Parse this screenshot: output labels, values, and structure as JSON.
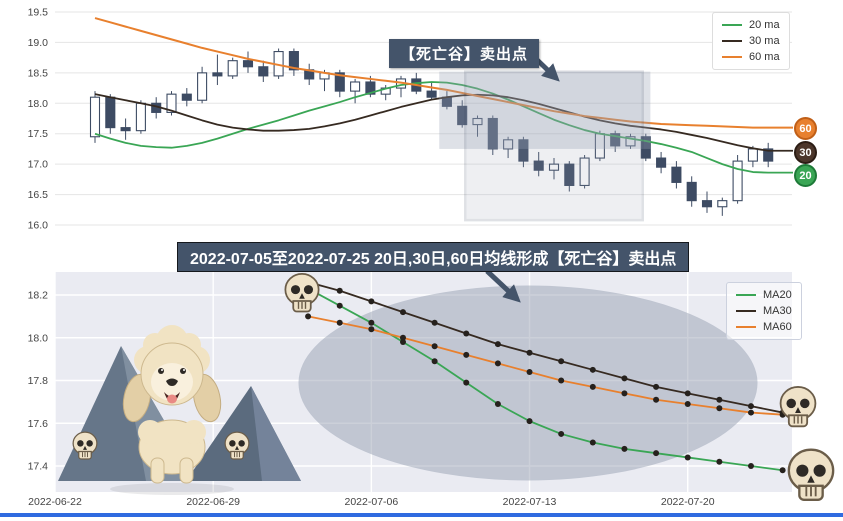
{
  "banner": {
    "text": "2022-07-05至2022-07-25 20日,30日,60日均线形成【死亡谷】卖出点"
  },
  "annotation": {
    "text": "【死亡谷】卖出点"
  },
  "badges": [
    {
      "label": "60",
      "color": "#e8802e",
      "ring": "#c05f17"
    },
    {
      "label": "30",
      "color": "#4c362b",
      "ring": "#2c1d15"
    },
    {
      "label": "20",
      "color": "#3aa655",
      "ring": "#1e7a38"
    }
  ],
  "colors": {
    "ma20": "#3aa655",
    "ma30": "#362a21",
    "ma60": "#e8802e",
    "candle": "#3d4b63",
    "highlight_fill": "#99a3b5",
    "highlight_box_border": "#3d4b63",
    "annotation_bg": "#44546a",
    "plot_bg_bottom": "#eaebf2",
    "ellipse_fill": "#9aa3b4",
    "bottom_strip": "#2f6be0"
  },
  "icons": {
    "skull": "skull-icon",
    "dog": "poodle-dog-illustration",
    "mountains": "mountain-illustration",
    "arrow": "annotation-arrow"
  },
  "chart_data": [
    {
      "type": "candlestick",
      "legend": [
        "20 ma",
        "30 ma",
        "60 ma"
      ],
      "legend_position": "upper right",
      "ylim": [
        16.0,
        19.5
      ],
      "yticks": [
        "19.5",
        "19.0",
        "18.5",
        "18.0",
        "17.5",
        "17.0",
        "16.5",
        "16.0"
      ],
      "grid": "horizontal",
      "candles_ohlc": [
        [
          17.45,
          18.2,
          17.35,
          18.1
        ],
        [
          18.1,
          18.15,
          17.5,
          17.6
        ],
        [
          17.6,
          17.75,
          17.4,
          17.55
        ],
        [
          17.55,
          18.05,
          17.5,
          18.0
        ],
        [
          18.0,
          18.1,
          17.75,
          17.85
        ],
        [
          17.85,
          18.2,
          17.8,
          18.15
        ],
        [
          18.15,
          18.25,
          17.95,
          18.05
        ],
        [
          18.05,
          18.6,
          18.0,
          18.5
        ],
        [
          18.5,
          18.8,
          18.3,
          18.45
        ],
        [
          18.45,
          18.75,
          18.4,
          18.7
        ],
        [
          18.7,
          18.85,
          18.5,
          18.6
        ],
        [
          18.6,
          18.7,
          18.35,
          18.45
        ],
        [
          18.45,
          18.9,
          18.4,
          18.85
        ],
        [
          18.85,
          18.9,
          18.45,
          18.55
        ],
        [
          18.55,
          18.65,
          18.3,
          18.4
        ],
        [
          18.4,
          18.55,
          18.2,
          18.5
        ],
        [
          18.5,
          18.55,
          18.1,
          18.2
        ],
        [
          18.2,
          18.4,
          18.0,
          18.35
        ],
        [
          18.35,
          18.45,
          18.1,
          18.15
        ],
        [
          18.15,
          18.3,
          18.05,
          18.25
        ],
        [
          18.25,
          18.45,
          18.1,
          18.4
        ],
        [
          18.4,
          18.5,
          18.15,
          18.2
        ],
        [
          18.2,
          18.35,
          18.05,
          18.1
        ],
        [
          18.1,
          18.2,
          17.9,
          17.95
        ],
        [
          17.95,
          18.05,
          17.6,
          17.65
        ],
        [
          17.65,
          17.8,
          17.45,
          17.75
        ],
        [
          17.75,
          17.8,
          17.15,
          17.25
        ],
        [
          17.25,
          17.45,
          17.1,
          17.4
        ],
        [
          17.4,
          17.45,
          16.95,
          17.05
        ],
        [
          17.05,
          17.2,
          16.8,
          16.9
        ],
        [
          16.9,
          17.1,
          16.75,
          17.0
        ],
        [
          17.0,
          17.05,
          16.55,
          16.65
        ],
        [
          16.65,
          17.15,
          16.6,
          17.1
        ],
        [
          17.1,
          17.55,
          17.05,
          17.5
        ],
        [
          17.5,
          17.55,
          17.2,
          17.3
        ],
        [
          17.3,
          17.5,
          17.25,
          17.45
        ],
        [
          17.45,
          17.5,
          17.05,
          17.1
        ],
        [
          17.1,
          17.2,
          16.85,
          16.95
        ],
        [
          16.95,
          17.05,
          16.6,
          16.7
        ],
        [
          16.7,
          16.8,
          16.3,
          16.4
        ],
        [
          16.4,
          16.55,
          16.2,
          16.3
        ],
        [
          16.3,
          16.45,
          16.15,
          16.4
        ],
        [
          16.4,
          17.15,
          16.35,
          17.05
        ],
        [
          17.05,
          17.3,
          16.95,
          17.25
        ],
        [
          17.25,
          17.35,
          16.95,
          17.05
        ]
      ],
      "series": [
        {
          "name": "20 ma",
          "values": [
            17.5,
            17.42,
            17.35,
            17.3,
            17.28,
            17.27,
            17.3,
            17.35,
            17.42,
            17.5,
            17.58,
            17.65,
            17.72,
            17.8,
            17.88,
            17.95,
            18.02,
            18.1,
            18.17,
            18.24,
            18.3,
            18.33,
            18.35,
            18.34,
            18.3,
            18.24,
            18.16,
            18.06,
            17.95,
            17.84,
            17.73,
            17.64,
            17.56,
            17.5,
            17.46,
            17.42,
            17.38,
            17.33,
            17.27,
            17.2,
            17.1,
            17.0,
            16.92,
            16.87,
            16.86
          ]
        },
        {
          "name": "30 ma",
          "values": [
            18.15,
            18.1,
            18.05,
            18.0,
            17.95,
            17.88,
            17.8,
            17.72,
            17.65,
            17.6,
            17.57,
            17.55,
            17.55,
            17.56,
            17.58,
            17.62,
            17.67,
            17.73,
            17.8,
            17.87,
            17.94,
            18.0,
            18.06,
            18.1,
            18.13,
            18.14,
            18.13,
            18.1,
            18.05,
            17.99,
            17.92,
            17.85,
            17.78,
            17.72,
            17.67,
            17.63,
            17.6,
            17.57,
            17.53,
            17.48,
            17.43,
            17.37,
            17.31,
            17.26,
            17.22
          ]
        },
        {
          "name": "60 ma",
          "values": [
            19.4,
            19.33,
            19.26,
            19.19,
            19.12,
            19.05,
            18.98,
            18.91,
            18.85,
            18.79,
            18.73,
            18.68,
            18.63,
            18.58,
            18.54,
            18.5,
            18.46,
            18.43,
            18.4,
            18.37,
            18.34,
            18.3,
            18.26,
            18.22,
            18.17,
            18.12,
            18.07,
            18.02,
            17.97,
            17.92,
            17.87,
            17.83,
            17.79,
            17.76,
            17.73,
            17.7,
            17.68,
            17.66,
            17.65,
            17.64,
            17.63,
            17.62,
            17.61,
            17.6,
            17.6
          ]
        }
      ],
      "highlight_band": {
        "from_i": 22.5,
        "to_i": 36.3,
        "top": 18.52,
        "bottom": 17.25
      },
      "highlight_box": {
        "from_i": 24.2,
        "to_i": 35.8,
        "top": 18.52,
        "bottom": 16.08
      }
    },
    {
      "type": "line",
      "legend": [
        "MA20",
        "MA30",
        "MA60"
      ],
      "legend_position": "upper right",
      "ylim": [
        17.3,
        18.3
      ],
      "yticks": [
        "18.2",
        "18.0",
        "17.8",
        "17.6",
        "17.4"
      ],
      "x_ticks": [
        "2022-06-22",
        "2022-06-29",
        "2022-07-06",
        "2022-07-13",
        "2022-07-20"
      ],
      "x_tick_offsets": [
        0,
        5,
        10,
        15,
        20
      ],
      "start_offset": 8,
      "dates": [
        "2022-07-04",
        "2022-07-05",
        "2022-07-06",
        "2022-07-07",
        "2022-07-08",
        "2022-07-11",
        "2022-07-12",
        "2022-07-13",
        "2022-07-14",
        "2022-07-15",
        "2022-07-18",
        "2022-07-19",
        "2022-07-20",
        "2022-07-21",
        "2022-07-22",
        "2022-07-25"
      ],
      "series": [
        {
          "name": "MA20",
          "values": [
            18.23,
            18.15,
            18.07,
            17.98,
            17.89,
            17.79,
            17.69,
            17.61,
            17.55,
            17.51,
            17.48,
            17.46,
            17.44,
            17.42,
            17.4,
            17.38
          ]
        },
        {
          "name": "MA30",
          "values": [
            18.26,
            18.22,
            18.17,
            18.12,
            18.07,
            18.02,
            17.97,
            17.93,
            17.89,
            17.85,
            17.81,
            17.77,
            17.74,
            17.71,
            17.68,
            17.65
          ]
        },
        {
          "name": "MA60",
          "values": [
            18.1,
            18.07,
            18.04,
            18.0,
            17.96,
            17.92,
            17.88,
            17.84,
            17.8,
            17.77,
            17.74,
            17.71,
            17.69,
            17.67,
            17.65,
            17.64
          ]
        }
      ],
      "grid": true
    }
  ]
}
